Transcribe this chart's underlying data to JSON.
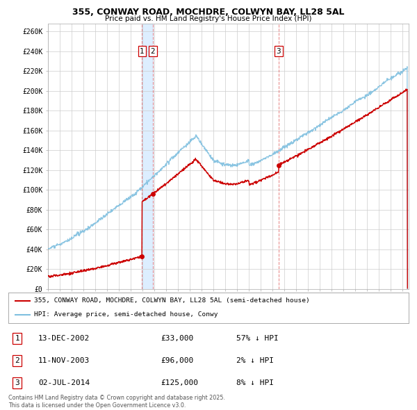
{
  "title_line1": "355, CONWAY ROAD, MOCHDRE, COLWYN BAY, LL28 5AL",
  "title_line2": "Price paid vs. HM Land Registry's House Price Index (HPI)",
  "yticks": [
    0,
    20000,
    40000,
    60000,
    80000,
    100000,
    120000,
    140000,
    160000,
    180000,
    200000,
    220000,
    240000,
    260000
  ],
  "ytick_labels": [
    "£0",
    "£20K",
    "£40K",
    "£60K",
    "£80K",
    "£100K",
    "£120K",
    "£140K",
    "£160K",
    "£180K",
    "£200K",
    "£220K",
    "£240K",
    "£260K"
  ],
  "ylim": [
    0,
    268000
  ],
  "xlim_start": 1995.0,
  "xlim_end": 2025.5,
  "hpi_color": "#7fbfdf",
  "price_color": "#cc0000",
  "vline_color": "#dd4444",
  "shade_color": "#ddeeff",
  "transaction1_date": 2002.96,
  "transaction1_price": 33000,
  "transaction1_label": "1",
  "transaction2_date": 2003.87,
  "transaction2_price": 96000,
  "transaction2_label": "2",
  "transaction3_date": 2014.5,
  "transaction3_price": 125000,
  "transaction3_label": "3",
  "legend_line1": "355, CONWAY ROAD, MOCHDRE, COLWYN BAY, LL28 5AL (semi-detached house)",
  "legend_line2": "HPI: Average price, semi-detached house, Conwy",
  "table_rows": [
    [
      "1",
      "13-DEC-2002",
      "£33,000",
      "57% ↓ HPI"
    ],
    [
      "2",
      "11-NOV-2003",
      "£96,000",
      "2% ↓ HPI"
    ],
    [
      "3",
      "02-JUL-2014",
      "£125,000",
      "8% ↓ HPI"
    ]
  ],
  "footer_text": "Contains HM Land Registry data © Crown copyright and database right 2025.\nThis data is licensed under the Open Government Licence v3.0.",
  "bg_color": "#ffffff",
  "grid_color": "#cccccc"
}
